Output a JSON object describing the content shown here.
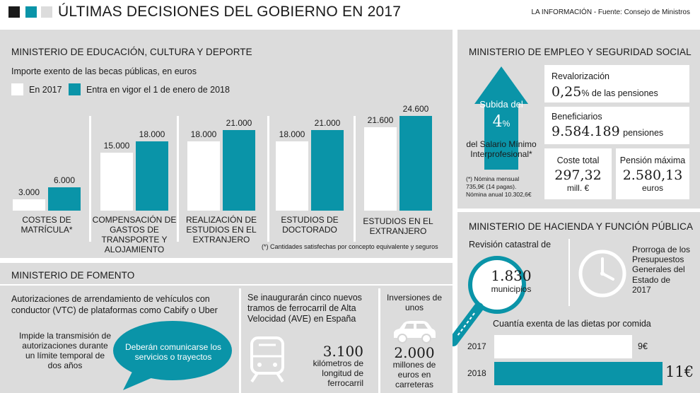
{
  "header": {
    "title": "ÚLTIMAS DECISIONES DEL GOBIERNO EN 2017",
    "source": "LA INFORMACIÓN - Fuente: Consejo de Ministros",
    "colors": {
      "teal": "#0a94a8",
      "dark": "#1a1a1a",
      "light": "#dcdcdc"
    }
  },
  "education": {
    "heading": "MINISTERIO DE EDUCACIÓN, CULTURA Y DEPORTE",
    "subtitle": "Importe exento de las becas públicas, en euros",
    "footnote": "(*) Cantidades satisfechas por concepto equivalente y seguros"
  },
  "chart_data": {
    "type": "bar",
    "title": "Importe exento de las becas públicas, en euros",
    "categories": [
      "COSTES DE MATRÍCULA*",
      "COMPENSACIÓN DE GASTOS DE TRANSPORTE Y ALOJAMIENTO",
      "REALIZACIÓN DE ESTUDIOS EN EL EXTRANJERO",
      "ESTUDIOS DE DOCTORADO",
      "ESTUDIOS EN EL EXTRANJERO"
    ],
    "series": [
      {
        "name": "En 2017",
        "color": "#ffffff",
        "values": [
          3000,
          15000,
          18000,
          18000,
          21600
        ],
        "labels": [
          "3.000",
          "15.000",
          "18.000",
          "18.000",
          "21.600"
        ]
      },
      {
        "name": "Entra en vigor el 1 de enero de 2018",
        "color": "#0a94a8",
        "values": [
          6000,
          18000,
          21000,
          21000,
          24600
        ],
        "labels": [
          "6.000",
          "18.000",
          "21.000",
          "21.000",
          "24.600"
        ]
      }
    ],
    "ylim": [
      0,
      24600
    ]
  },
  "employment": {
    "heading": "MINISTERIO DE EMPLEO Y SEGURIDAD SOCIAL",
    "arrow_label": "Subida del",
    "arrow_value": "4",
    "arrow_unit": "%",
    "smi_label": "del Salario Mínimo Interprofesional*",
    "note1": "(*) Nómina mensual",
    "note2": "735,9€ (14 pagas).",
    "note3": "Nómina anual 10.302,6€",
    "reval_label": "Revalorización",
    "reval_value": "0,25",
    "reval_unit": "% de las pensiones",
    "benef_label": "Beneficiarios",
    "benef_value": "9.584.189",
    "benef_unit": "pensiones",
    "cost_label": "Coste total",
    "cost_value": "297,32",
    "cost_unit": "mill. €",
    "max_label": "Pensión máxima",
    "max_value": "2.580,13",
    "max_unit": "euros"
  },
  "hacienda": {
    "heading": "MINISTERIO DE HACIENDA Y FUNCIÓN PÚBLICA",
    "catastro_label": "Revisión catastral de",
    "catastro_value": "1.830",
    "catastro_unit": "municipios",
    "prorroga": "Prorroga de los Presupuestos Generales del Estado de 2017",
    "dietas_title": "Cuantía exenta de las dietas por comida",
    "dietas": [
      {
        "year": "2017",
        "label": "9€",
        "value": 9
      },
      {
        "year": "2018",
        "label": "11€",
        "value": 11
      }
    ]
  },
  "fomento": {
    "heading": "MINISTERIO DE FOMENTO",
    "vtc_text": "Autorizaciones de arrendamiento de vehículos con conductor (VTC) de plataformas como Cabify o Uber",
    "impide": "Impide la transmisión de autorizaciones durante un límite temporal de dos años",
    "bubble": "Deberán comunicarse los servicios o trayectos",
    "ave_text": "Se inaugurarán cinco nuevos tramos de ferrocarril de Alta Velocidad (AVE) en España",
    "km_value": "3.100",
    "km_unit": "kilómetros de longitud de ferrocarril",
    "inv_label": "Inversiones de unos",
    "inv_value": "2.000",
    "inv_unit": "millones de euros en carreteras"
  }
}
